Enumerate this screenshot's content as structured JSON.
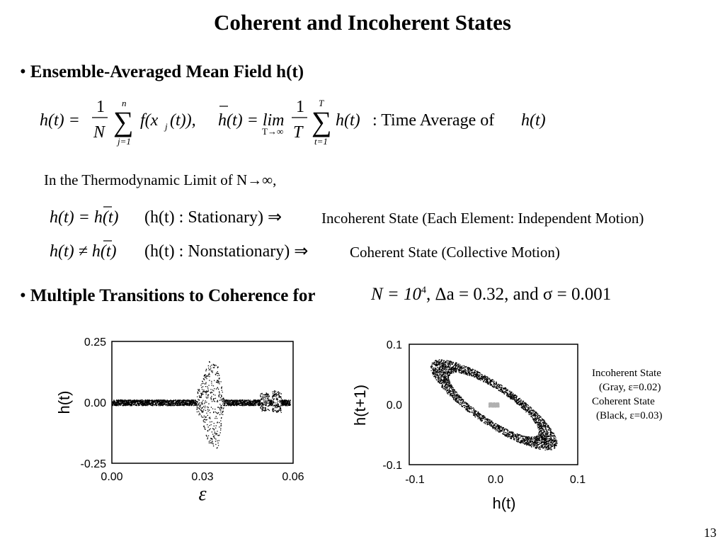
{
  "title": "Coherent and Incoherent States",
  "bullet1": "Ensemble-Averaged Mean Field h(t)",
  "bullet_symbol": "•",
  "eq1": {
    "lhs": "h(t) =",
    "frac1_num": "1",
    "frac1_den": "N",
    "sum1_top": "n",
    "sum1_bottom": "j=1",
    "term1": "f(x",
    "term1_sub": "j",
    "term1_end": "(t)),",
    "lhs2": "h(t) = lim",
    "lim_sub": "T→∞",
    "frac2_num": "1",
    "frac2_den": "T",
    "sum2_top": "T",
    "sum2_bottom": "t=1",
    "term2": "h(t)",
    "desc": ": Time  Average  of",
    "desc_end": "h(t)"
  },
  "thermo": "In the Thermodynamic Limit of N→∞,",
  "line_stationary": {
    "eq": "h(t) = h(t)",
    "paren": "(h(t) : Stationary) ⇒",
    "text": "Incoherent State (Each Element: Independent Motion)"
  },
  "line_nonstationary": {
    "eq": "h(t) ≠ h(t)",
    "paren": "(h(t) : Nonstationary) ⇒",
    "text": "Coherent State (Collective Motion)"
  },
  "bullet2": "Multiple Transitions to Coherence for",
  "bullet2_math": "N = 10",
  "bullet2_exp": "4",
  "bullet2_rest": ", Δa = 0.32, and σ = 0.001",
  "legend": {
    "line1": "Incoherent State",
    "line2": "(Gray, ε=0.02)",
    "line3": "Coherent State",
    "line4": "(Black, ε=0.03)"
  },
  "page_number": "13",
  "chart_data": [
    {
      "type": "scatter",
      "xlabel": "ε",
      "ylabel": "h(t)",
      "xlim": [
        0.0,
        0.06
      ],
      "ylim": [
        -0.25,
        0.25
      ],
      "xticks": [
        "0.00",
        "0.03",
        "0.06"
      ],
      "yticks": [
        "0.25",
        "0.00",
        "-0.25"
      ],
      "description_points": [
        {
          "x": 0.0,
          "y_min": -0.01,
          "y_max": 0.01
        },
        {
          "x": 0.029,
          "y_min": -0.05,
          "y_max": 0.06
        },
        {
          "x": 0.032,
          "y_min": -0.17,
          "y_max": 0.17
        },
        {
          "x": 0.035,
          "y_min": -0.19,
          "y_max": 0.16
        },
        {
          "x": 0.037,
          "y_min": -0.01,
          "y_max": 0.01
        },
        {
          "x": 0.045,
          "y_min": -0.01,
          "y_max": 0.01
        },
        {
          "x": 0.05,
          "y_min": -0.03,
          "y_max": 0.04
        },
        {
          "x": 0.055,
          "y_min": -0.04,
          "y_max": 0.05
        },
        {
          "x": 0.058,
          "y_min": -0.01,
          "y_max": 0.01
        }
      ]
    },
    {
      "type": "scatter",
      "xlabel": "h(t)",
      "ylabel": "h(t+1)",
      "xlim": [
        -0.1,
        0.1
      ],
      "ylim": [
        -0.1,
        0.1
      ],
      "xticks": [
        "-0.1",
        "0.0",
        "0.1"
      ],
      "yticks": [
        "0.1",
        "0.0",
        "-0.1"
      ],
      "series": [
        {
          "name": "Incoherent State (Gray, ε=0.02)",
          "color": "#b0b0b0",
          "center": [
            0.0,
            0.0
          ],
          "spread": 0.006
        },
        {
          "name": "Coherent State (Black, ε=0.03)",
          "color": "#000000",
          "center": [
            0.0,
            0.0
          ],
          "major_radius": 0.085,
          "minor_radius": 0.025,
          "angle_deg": -45
        }
      ]
    }
  ]
}
